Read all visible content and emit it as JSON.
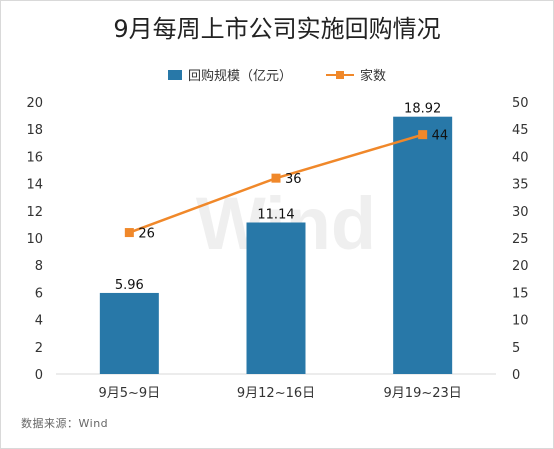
{
  "source": "数据来源：Wind",
  "watermark": "Wind",
  "colors": {
    "bar": "#2878a8",
    "line": "#f0882a",
    "axis": "#d9d9d9",
    "text": "#333333"
  },
  "chart_data": {
    "type": "bar",
    "title": "9月每周上市公司实施回购情况",
    "categories": [
      "9月5~9日",
      "9月12~16日",
      "9月19~23日"
    ],
    "series": [
      {
        "name": "回购规模（亿元）",
        "type": "bar",
        "axis": "left",
        "values": [
          5.96,
          11.14,
          18.92
        ]
      },
      {
        "name": "家数",
        "type": "line",
        "axis": "right",
        "values": [
          26,
          36,
          44
        ]
      }
    ],
    "y_left": {
      "ylim": [
        0,
        20
      ],
      "ticks": [
        0,
        2,
        4,
        6,
        8,
        10,
        12,
        14,
        16,
        18,
        20
      ]
    },
    "y_right": {
      "ylim": [
        0,
        50
      ],
      "ticks": [
        0,
        5,
        10,
        15,
        20,
        25,
        30,
        35,
        40,
        45,
        50
      ]
    },
    "grid": false,
    "legend_position": "top"
  }
}
